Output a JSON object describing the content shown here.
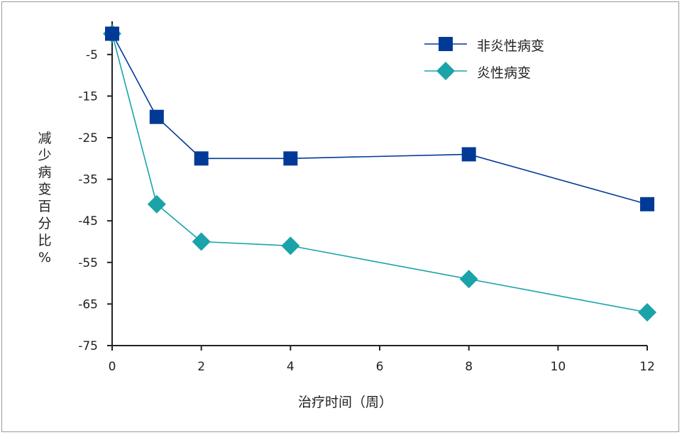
{
  "chart_data": {
    "type": "line",
    "title": "",
    "xlabel": "治疗时间（周）",
    "ylabel": "减少病变百分比 %",
    "x": [
      0,
      1,
      2,
      4,
      8,
      12
    ],
    "xlim": [
      0,
      12
    ],
    "ylim": [
      -75,
      0
    ],
    "xticks": [
      0,
      2,
      4,
      6,
      8,
      10,
      12
    ],
    "yticks": [
      -5,
      -15,
      -25,
      -35,
      -45,
      -55,
      -65,
      -75
    ],
    "grid": false,
    "legend_placement": "top-right",
    "series": [
      {
        "name": "非炎性病变",
        "values": [
          0,
          -20,
          -30,
          -30,
          -29,
          -41
        ],
        "color": "#003a96",
        "marker": "square"
      },
      {
        "name": "炎性病变",
        "values": [
          0,
          -41,
          -50,
          -51,
          -59,
          -67
        ],
        "color": "#1aa3a8",
        "marker": "diamond"
      }
    ]
  }
}
